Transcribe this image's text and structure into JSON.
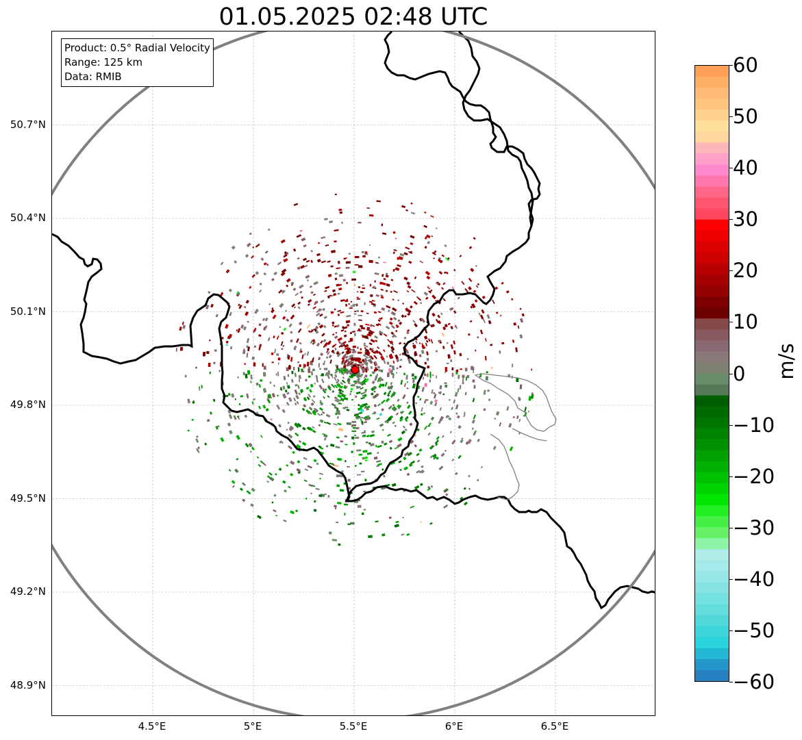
{
  "title": "01.05.2025 02:48 UTC",
  "info": {
    "product": "Product: 0.5° Radial Velocity",
    "range": "Range: 125 km",
    "source": "Data: RMIB"
  },
  "map": {
    "lon_range": [
      4.0,
      7.0
    ],
    "lat_range": [
      48.8,
      51.0
    ],
    "radar_site": {
      "lon": 5.505,
      "lat": 49.914
    },
    "lat_ticks": [
      {
        "value": 50.7,
        "label": "50.7°N"
      },
      {
        "value": 50.4,
        "label": "50.4°N"
      },
      {
        "value": 50.1,
        "label": "50.1°N"
      },
      {
        "value": 49.8,
        "label": "49.8°N"
      },
      {
        "value": 49.5,
        "label": "49.5°N"
      },
      {
        "value": 49.2,
        "label": "49.2°N"
      },
      {
        "value": 48.9,
        "label": "48.9°N"
      }
    ],
    "lon_ticks": [
      {
        "value": 4.5,
        "label": "4.5°E"
      },
      {
        "value": 5.0,
        "label": "5°E"
      },
      {
        "value": 5.5,
        "label": "5.5°E"
      },
      {
        "value": 6.0,
        "label": "6°E"
      },
      {
        "value": 6.5,
        "label": "6.5°E"
      }
    ],
    "colors": {
      "border": "#000000",
      "range_ring": "#808080",
      "grid": "#b0b0b0",
      "radar_marker": "#ff0000"
    }
  },
  "colorbar": {
    "unit": "m/s",
    "vmin": -60,
    "vmax": 60,
    "ticks": [
      "60",
      "50",
      "40",
      "30",
      "20",
      "10",
      "0",
      "−10",
      "−20",
      "−30",
      "−40",
      "−50",
      "−60"
    ],
    "segments": [
      "#ff9f55",
      "#ffae66",
      "#ffbb77",
      "#ffc680",
      "#ffd18b",
      "#ffe09a",
      "#ffd6a0",
      "#ffb6b8",
      "#ffa0c8",
      "#ff88cc",
      "#ff77aa",
      "#ff6688",
      "#ff5570",
      "#ff4860",
      "#ff0000",
      "#ee0000",
      "#dd0000",
      "#cc0000",
      "#b80000",
      "#a40000",
      "#920000",
      "#7f0000",
      "#6e0000",
      "#864848",
      "#8a5a62",
      "#8a6a72",
      "#887878",
      "#7e8070",
      "#688c68",
      "#567856",
      "#005e00",
      "#006a00",
      "#007600",
      "#008400",
      "#009200",
      "#00a000",
      "#00b000",
      "#00c200",
      "#00d400",
      "#00e600",
      "#22f022",
      "#44f044",
      "#66f066",
      "#8ef4a8",
      "#b2ece9",
      "#a4eaea",
      "#96e6e6",
      "#86e2e2",
      "#74e0e0",
      "#62dcdc",
      "#50d8d8",
      "#3cd6da",
      "#2ad4dc",
      "#22b8d4",
      "#2496ca",
      "#2680c0"
    ]
  }
}
